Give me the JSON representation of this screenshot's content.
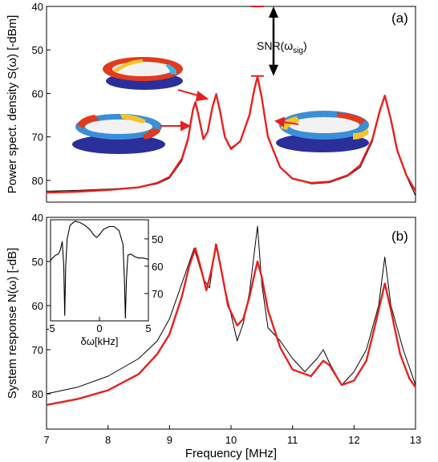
{
  "chart_data": [
    {
      "type": "line",
      "panel_label": "(a)",
      "ylabel": "Power spect. density S(ω) [-dBm]",
      "xlim": [
        7,
        13
      ],
      "ylim": [
        40,
        85
      ],
      "y_inverted": true,
      "yticks": [
        40,
        50,
        60,
        70,
        80
      ],
      "grid": false,
      "annotation": {
        "text": "SNR(ω",
        "subscript": "sig",
        "close": ")",
        "at_x": 10.43,
        "from_y": 40,
        "to_y": 56
      },
      "series": [
        {
          "role": "measured",
          "color": "#000000",
          "points": [
            [
              7.0,
              82.5
            ],
            [
              7.5,
              82.3
            ],
            [
              8.0,
              82.0
            ],
            [
              8.5,
              81.6
            ],
            [
              8.8,
              80.8
            ],
            [
              9.0,
              79.5
            ],
            [
              9.2,
              75.5
            ],
            [
              9.3,
              71
            ],
            [
              9.38,
              64
            ],
            [
              9.42,
              62
            ],
            [
              9.47,
              65
            ],
            [
              9.55,
              70.5
            ],
            [
              9.62,
              69
            ],
            [
              9.7,
              63
            ],
            [
              9.76,
              60
            ],
            [
              9.82,
              64
            ],
            [
              9.9,
              70
            ],
            [
              10.0,
              72.5
            ],
            [
              10.15,
              71
            ],
            [
              10.3,
              65
            ],
            [
              10.38,
              59
            ],
            [
              10.43,
              56
            ],
            [
              10.5,
              61
            ],
            [
              10.6,
              70
            ],
            [
              10.8,
              77
            ],
            [
              11.0,
              79.5
            ],
            [
              11.3,
              80.8
            ],
            [
              11.6,
              80.5
            ],
            [
              11.9,
              79
            ],
            [
              12.1,
              77
            ],
            [
              12.3,
              71
            ],
            [
              12.42,
              64
            ],
            [
              12.5,
              60.5
            ],
            [
              12.6,
              66
            ],
            [
              12.7,
              73
            ],
            [
              12.85,
              79
            ],
            [
              13.0,
              83.5
            ]
          ]
        },
        {
          "role": "fit",
          "color": "#e8201e",
          "points": [
            [
              7.0,
              82.8
            ],
            [
              7.5,
              82.6
            ],
            [
              8.0,
              82.2
            ],
            [
              8.5,
              81.6
            ],
            [
              8.8,
              80.6
            ],
            [
              9.0,
              79.2
            ],
            [
              9.2,
              75
            ],
            [
              9.3,
              70.5
            ],
            [
              9.38,
              63.8
            ],
            [
              9.42,
              62
            ],
            [
              9.47,
              65
            ],
            [
              9.55,
              70.5
            ],
            [
              9.62,
              68.8
            ],
            [
              9.7,
              63
            ],
            [
              9.76,
              60.2
            ],
            [
              9.82,
              64
            ],
            [
              9.9,
              70
            ],
            [
              10.0,
              72.8
            ],
            [
              10.15,
              71
            ],
            [
              10.3,
              65
            ],
            [
              10.38,
              59
            ],
            [
              10.43,
              56.2
            ],
            [
              10.5,
              61
            ],
            [
              10.6,
              70
            ],
            [
              10.8,
              77
            ],
            [
              11.0,
              79.6
            ],
            [
              11.3,
              80.6
            ],
            [
              11.6,
              80.3
            ],
            [
              11.9,
              78.8
            ],
            [
              12.1,
              76.5
            ],
            [
              12.3,
              70.5
            ],
            [
              12.42,
              64
            ],
            [
              12.5,
              60.5
            ],
            [
              12.6,
              66
            ],
            [
              12.7,
              73
            ],
            [
              12.85,
              78.8
            ],
            [
              13.0,
              82.5
            ]
          ]
        }
      ]
    },
    {
      "type": "line",
      "panel_label": "(b)",
      "ylabel": "System response N(ω) [-dB]",
      "xlabel": "Frequency [MHz]",
      "xlim": [
        7,
        13
      ],
      "ylim": [
        40,
        88
      ],
      "y_inverted": true,
      "xticks": [
        7,
        8,
        9,
        10,
        11,
        12,
        13
      ],
      "yticks": [
        40,
        50,
        60,
        70,
        80
      ],
      "grid": false,
      "series": [
        {
          "role": "measured",
          "color": "#000000",
          "points": [
            [
              7.0,
              80
            ],
            [
              7.5,
              78.5
            ],
            [
              8.0,
              76
            ],
            [
              8.5,
              72
            ],
            [
              8.8,
              68
            ],
            [
              9.0,
              63
            ],
            [
              9.2,
              55
            ],
            [
              9.4,
              47
            ],
            [
              9.55,
              54
            ],
            [
              9.65,
              56
            ],
            [
              9.75,
              46
            ],
            [
              9.85,
              53
            ],
            [
              10.0,
              62
            ],
            [
              10.1,
              68
            ],
            [
              10.2,
              64
            ],
            [
              10.3,
              57
            ],
            [
              10.43,
              42
            ],
            [
              10.5,
              55
            ],
            [
              10.6,
              65
            ],
            [
              10.8,
              68
            ],
            [
              11.0,
              72
            ],
            [
              11.2,
              75
            ],
            [
              11.4,
              72
            ],
            [
              11.5,
              70
            ],
            [
              11.6,
              73
            ],
            [
              11.8,
              78
            ],
            [
              12.0,
              75
            ],
            [
              12.2,
              70
            ],
            [
              12.4,
              60
            ],
            [
              12.5,
              49
            ],
            [
              12.6,
              60
            ],
            [
              12.8,
              70
            ],
            [
              13.0,
              78
            ]
          ]
        },
        {
          "role": "fit",
          "color": "#e8201e",
          "points": [
            [
              7.0,
              82.5
            ],
            [
              7.5,
              81.2
            ],
            [
              8.0,
              79.2
            ],
            [
              8.5,
              75.5
            ],
            [
              8.8,
              71
            ],
            [
              9.0,
              66.5
            ],
            [
              9.2,
              58
            ],
            [
              9.32,
              51
            ],
            [
              9.42,
              47
            ],
            [
              9.5,
              51
            ],
            [
              9.6,
              56.5
            ],
            [
              9.68,
              52
            ],
            [
              9.76,
              46.2
            ],
            [
              9.85,
              52.5
            ],
            [
              9.95,
              60
            ],
            [
              10.1,
              64.5
            ],
            [
              10.2,
              63
            ],
            [
              10.3,
              58
            ],
            [
              10.38,
              53
            ],
            [
              10.43,
              50
            ],
            [
              10.5,
              53.5
            ],
            [
              10.6,
              61
            ],
            [
              10.8,
              69.5
            ],
            [
              11.0,
              74.5
            ],
            [
              11.3,
              76
            ],
            [
              11.5,
              72.5
            ],
            [
              11.6,
              73.5
            ],
            [
              11.8,
              78
            ],
            [
              12.0,
              77
            ],
            [
              12.2,
              72.5
            ],
            [
              12.35,
              64
            ],
            [
              12.5,
              55
            ],
            [
              12.6,
              61
            ],
            [
              12.75,
              71
            ],
            [
              12.9,
              76.5
            ],
            [
              13.0,
              78.5
            ]
          ]
        }
      ],
      "inset": {
        "xlabel": "δω[kHz]",
        "xlim": [
          -5,
          5
        ],
        "ylim": [
          43,
          80
        ],
        "y_inverted": true,
        "xticks": [
          -5,
          0,
          5
        ],
        "yticks": [
          50,
          60,
          70
        ],
        "points": [
          [
            -5,
            58
          ],
          [
            -4.8,
            57
          ],
          [
            -4.5,
            56
          ],
          [
            -4.2,
            55.5
          ],
          [
            -4,
            54
          ],
          [
            -3.8,
            51
          ],
          [
            -3.65,
            60
          ],
          [
            -3.55,
            78
          ],
          [
            -3.45,
            60
          ],
          [
            -3.3,
            50
          ],
          [
            -3,
            45
          ],
          [
            -2.5,
            43.5
          ],
          [
            -2,
            44
          ],
          [
            -1.5,
            45
          ],
          [
            -1,
            46.5
          ],
          [
            -0.6,
            48.5
          ],
          [
            -0.3,
            49.5
          ],
          [
            0,
            48.5
          ],
          [
            0.4,
            46.5
          ],
          [
            1,
            45.5
          ],
          [
            1.5,
            45.5
          ],
          [
            2,
            47
          ],
          [
            2.4,
            52
          ],
          [
            2.55,
            65
          ],
          [
            2.65,
            79
          ],
          [
            2.75,
            65
          ],
          [
            2.9,
            56
          ],
          [
            3.2,
            55.5
          ],
          [
            3.6,
            56.5
          ],
          [
            4,
            57
          ],
          [
            4.5,
            57
          ],
          [
            5,
            57.5
          ]
        ]
      }
    }
  ]
}
